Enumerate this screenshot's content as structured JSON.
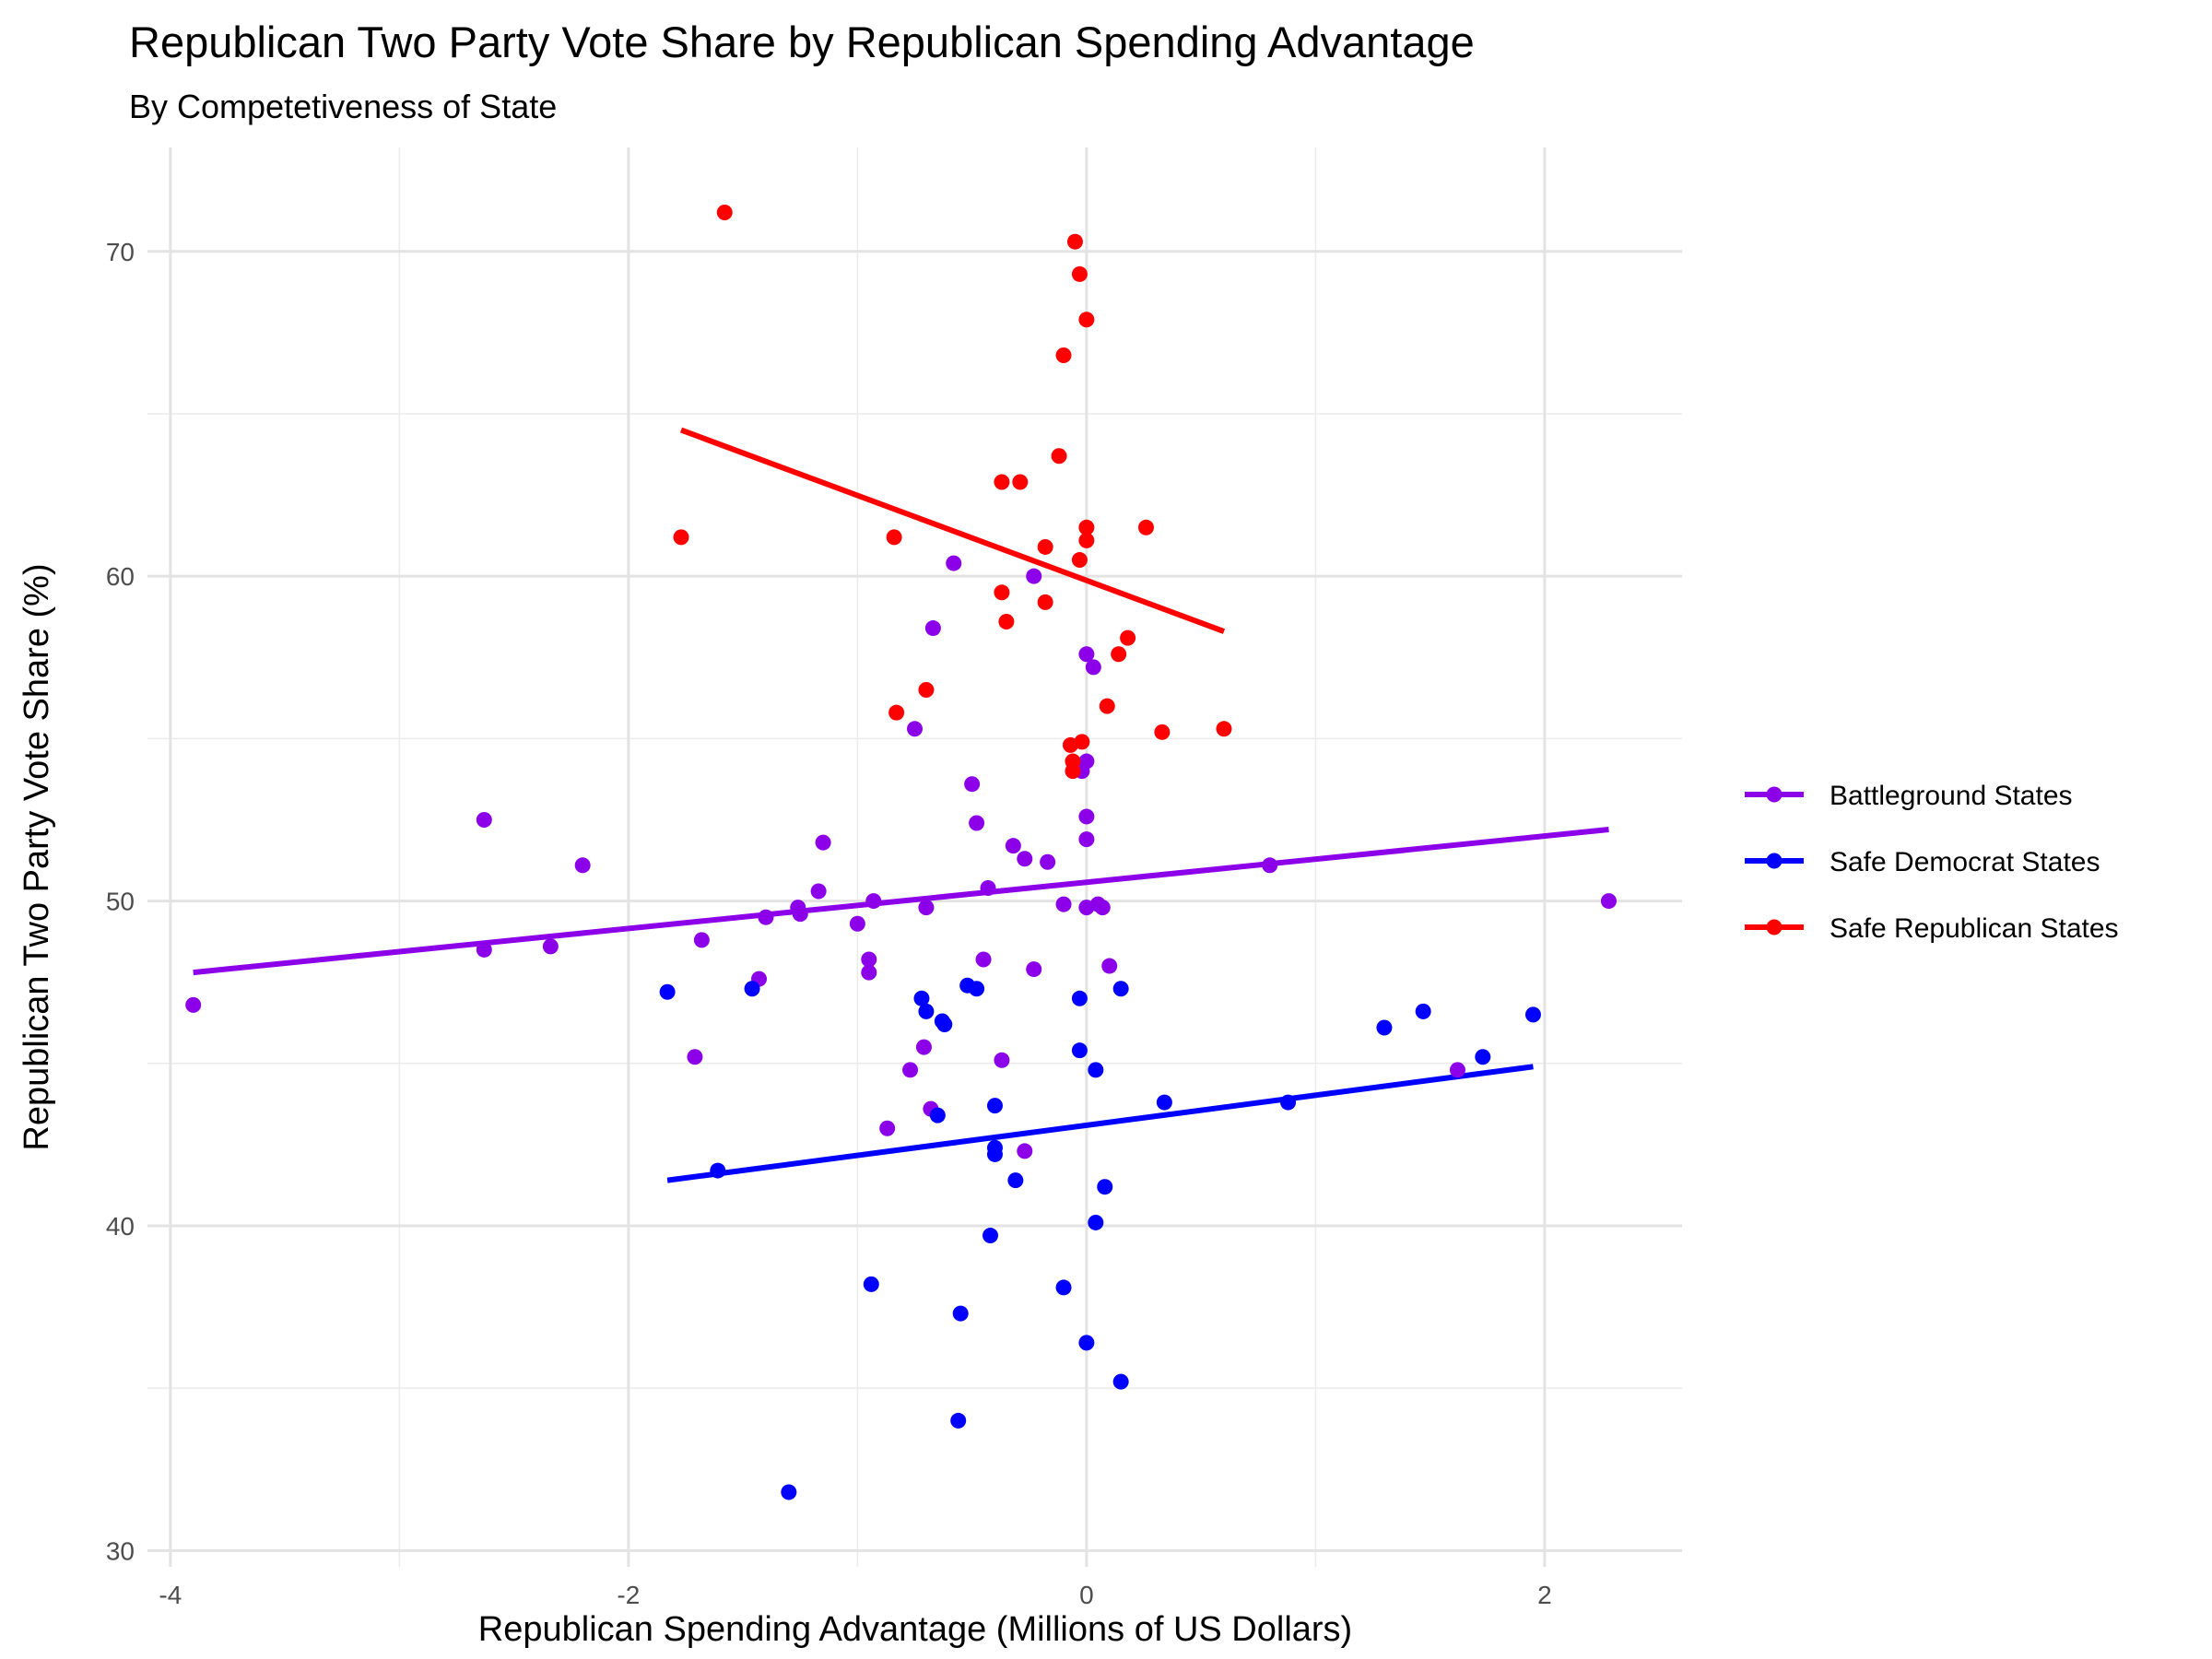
{
  "chart_data": {
    "type": "scatter",
    "title": "Republican Two Party Vote Share by Republican Spending Advantage",
    "subtitle": "By Competetiveness of State",
    "xlabel": "Republican Spending Advantage (Millions of US Dollars)",
    "ylabel": "Republican Two Party Vote Share (%)",
    "xlim": [
      -4.1,
      2.6
    ],
    "ylim": [
      29.5,
      73.2
    ],
    "x_ticks": [
      -4,
      -2,
      0,
      2
    ],
    "y_ticks": [
      30,
      40,
      50,
      60,
      70
    ],
    "grid": true,
    "legend_position": "right",
    "series": [
      {
        "name": "Battleground States",
        "color": "#8b00e8",
        "points": [
          [
            -3.9,
            46.8
          ],
          [
            -2.63,
            52.5
          ],
          [
            -2.63,
            48.5
          ],
          [
            -2.34,
            48.6
          ],
          [
            -2.2,
            51.1
          ],
          [
            -1.71,
            45.2
          ],
          [
            -1.68,
            48.8
          ],
          [
            -1.43,
            47.6
          ],
          [
            -1.4,
            49.5
          ],
          [
            -1.26,
            49.8
          ],
          [
            -1.25,
            49.6
          ],
          [
            -1.17,
            50.3
          ],
          [
            -1.15,
            51.8
          ],
          [
            -1.0,
            49.3
          ],
          [
            -0.95,
            48.2
          ],
          [
            -0.95,
            47.8
          ],
          [
            -0.93,
            50.0
          ],
          [
            -0.87,
            43.0
          ],
          [
            -0.77,
            44.8
          ],
          [
            -0.75,
            55.3
          ],
          [
            -0.71,
            45.5
          ],
          [
            -0.7,
            49.8
          ],
          [
            -0.68,
            43.6
          ],
          [
            -0.67,
            58.4
          ],
          [
            -0.58,
            60.4
          ],
          [
            -0.5,
            53.6
          ],
          [
            -0.48,
            52.4
          ],
          [
            -0.45,
            48.2
          ],
          [
            -0.43,
            50.4
          ],
          [
            -0.37,
            45.1
          ],
          [
            -0.32,
            51.7
          ],
          [
            -0.27,
            51.3
          ],
          [
            -0.27,
            42.3
          ],
          [
            -0.23,
            47.9
          ],
          [
            -0.23,
            60.0
          ],
          [
            -0.17,
            51.2
          ],
          [
            -0.1,
            49.9
          ],
          [
            0.0,
            57.6
          ],
          [
            0.0,
            52.6
          ],
          [
            0.0,
            51.9
          ],
          [
            0.0,
            49.8
          ],
          [
            -0.02,
            54.0
          ],
          [
            0.0,
            54.3
          ],
          [
            0.03,
            57.2
          ],
          [
            0.05,
            49.9
          ],
          [
            0.07,
            49.8
          ],
          [
            0.1,
            48.0
          ],
          [
            0.8,
            51.1
          ],
          [
            1.62,
            44.8
          ],
          [
            2.28,
            50.0
          ]
        ],
        "fit": [
          [
            -3.9,
            47.8
          ],
          [
            2.28,
            52.2
          ]
        ]
      },
      {
        "name": "Safe Democrat States",
        "color": "#0000ff",
        "points": [
          [
            -1.83,
            47.2
          ],
          [
            -1.61,
            41.7
          ],
          [
            -1.46,
            47.3
          ],
          [
            -1.3,
            31.8
          ],
          [
            -0.94,
            38.2
          ],
          [
            -0.72,
            47.0
          ],
          [
            -0.7,
            46.6
          ],
          [
            -0.65,
            43.4
          ],
          [
            -0.63,
            46.3
          ],
          [
            -0.62,
            46.2
          ],
          [
            -0.56,
            34.0
          ],
          [
            -0.55,
            37.3
          ],
          [
            -0.52,
            47.4
          ],
          [
            -0.48,
            47.3
          ],
          [
            -0.42,
            39.7
          ],
          [
            -0.4,
            43.7
          ],
          [
            -0.4,
            42.4
          ],
          [
            -0.4,
            42.2
          ],
          [
            -0.31,
            41.4
          ],
          [
            -0.1,
            38.1
          ],
          [
            -0.03,
            45.4
          ],
          [
            -0.03,
            47.0
          ],
          [
            0.0,
            36.4
          ],
          [
            0.04,
            44.8
          ],
          [
            0.04,
            40.1
          ],
          [
            0.08,
            41.2
          ],
          [
            0.15,
            47.3
          ],
          [
            0.15,
            35.2
          ],
          [
            0.34,
            43.8
          ],
          [
            0.88,
            43.8
          ],
          [
            1.3,
            46.1
          ],
          [
            1.47,
            46.6
          ],
          [
            1.73,
            45.2
          ],
          [
            1.95,
            46.5
          ]
        ],
        "fit": [
          [
            -1.83,
            41.4
          ],
          [
            1.95,
            44.9
          ]
        ]
      },
      {
        "name": "Safe Republican States",
        "color": "#ff0000",
        "points": [
          [
            -1.77,
            61.2
          ],
          [
            -1.58,
            71.2
          ],
          [
            -0.84,
            61.2
          ],
          [
            -0.83,
            55.8
          ],
          [
            -0.7,
            56.5
          ],
          [
            -0.37,
            62.9
          ],
          [
            -0.37,
            59.5
          ],
          [
            -0.35,
            58.6
          ],
          [
            -0.29,
            62.9
          ],
          [
            -0.18,
            60.9
          ],
          [
            -0.18,
            59.2
          ],
          [
            -0.12,
            63.7
          ],
          [
            -0.1,
            66.8
          ],
          [
            -0.07,
            54.8
          ],
          [
            -0.06,
            54.3
          ],
          [
            -0.06,
            54.0
          ],
          [
            -0.05,
            70.3
          ],
          [
            -0.03,
            69.3
          ],
          [
            -0.03,
            60.5
          ],
          [
            -0.02,
            54.9
          ],
          [
            0.0,
            67.9
          ],
          [
            0.0,
            61.5
          ],
          [
            0.0,
            61.1
          ],
          [
            0.09,
            56.0
          ],
          [
            0.14,
            57.6
          ],
          [
            0.18,
            58.1
          ],
          [
            0.26,
            61.5
          ],
          [
            0.33,
            55.2
          ],
          [
            0.6,
            55.3
          ]
        ],
        "fit": [
          [
            -1.77,
            64.5
          ],
          [
            0.6,
            58.3
          ]
        ]
      }
    ]
  }
}
